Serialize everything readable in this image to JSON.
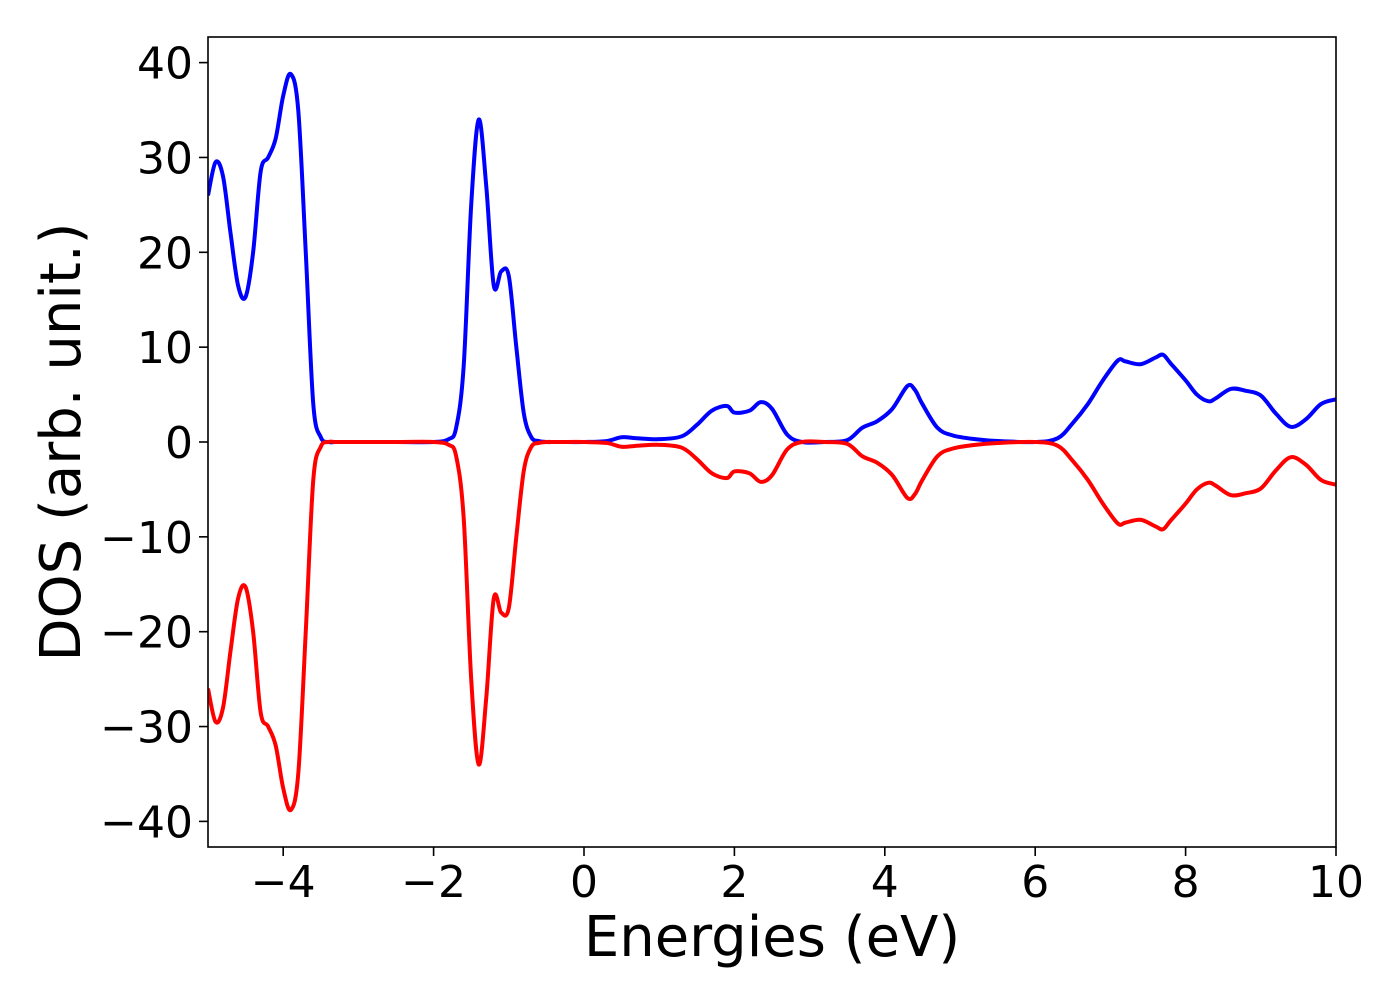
{
  "chart_data": {
    "type": "line",
    "title": "",
    "xlabel": "Energies (eV)",
    "ylabel": "DOS (arb. unit.)",
    "xlim": [
      -5,
      10
    ],
    "ylim": [
      -42.7,
      42.7
    ],
    "grid": false,
    "legend": "none",
    "xticks": [
      -4,
      -2,
      0,
      2,
      4,
      6,
      8,
      10
    ],
    "xtick_labels": [
      "−4",
      "−2",
      "0",
      "2",
      "4",
      "6",
      "8",
      "10"
    ],
    "yticks": [
      40,
      30,
      20,
      10,
      0,
      -10,
      -20,
      -30,
      -40
    ],
    "ytick_labels": [
      "40",
      "30",
      "20",
      "10",
      "0",
      "−10",
      "−20",
      "−30",
      "−40"
    ],
    "series": [
      {
        "color": "#0000ff",
        "x": [
          -5.0,
          -4.9,
          -4.8,
          -4.7,
          -4.6,
          -4.5,
          -4.4,
          -4.3,
          -4.2,
          -4.1,
          -4.0,
          -3.9,
          -3.8,
          -3.7,
          -3.6,
          -3.5,
          -3.4,
          -3.3,
          -3.2,
          -3.1,
          -3.0,
          -2.5,
          -2.0,
          -1.8,
          -1.7,
          -1.6,
          -1.5,
          -1.4,
          -1.3,
          -1.2,
          -1.1,
          -1.0,
          -0.9,
          -0.8,
          -0.7,
          -0.6,
          -0.5,
          -0.4,
          -0.3,
          0.0,
          0.3,
          0.5,
          0.7,
          1.0,
          1.3,
          1.5,
          1.7,
          1.9,
          2.0,
          2.2,
          2.35,
          2.5,
          2.7,
          2.9,
          3.2,
          3.5,
          3.7,
          3.9,
          4.1,
          4.3,
          4.4,
          4.5,
          4.7,
          4.9,
          5.2,
          5.5,
          6.0,
          6.3,
          6.5,
          6.7,
          6.9,
          7.1,
          7.2,
          7.4,
          7.6,
          7.7,
          7.8,
          8.0,
          8.15,
          8.3,
          8.4,
          8.6,
          8.8,
          9.0,
          9.2,
          9.4,
          9.6,
          9.8,
          10.0
        ],
        "y": [
          26,
          29.5,
          28,
          22,
          16.5,
          15.3,
          20,
          28.5,
          30,
          32,
          36.5,
          38.8,
          35,
          20,
          4,
          0.5,
          0,
          0,
          0,
          0,
          0,
          0,
          0,
          0.3,
          1.5,
          8,
          25,
          34,
          27,
          16.5,
          18,
          17.5,
          10,
          3,
          0.5,
          0.1,
          0,
          0,
          0,
          0,
          0.1,
          0.5,
          0.4,
          0.3,
          0.6,
          1.8,
          3.3,
          3.8,
          3.1,
          3.3,
          4.2,
          3.5,
          0.8,
          0,
          0,
          0.2,
          1.5,
          2.2,
          3.5,
          5.9,
          5.5,
          4.0,
          1.5,
          0.7,
          0.3,
          0.1,
          0,
          0.4,
          2.0,
          4.0,
          6.5,
          8.6,
          8.5,
          8.2,
          8.9,
          9.2,
          8.3,
          6.5,
          5.0,
          4.3,
          4.6,
          5.6,
          5.4,
          4.9,
          3.0,
          1.6,
          2.4,
          4.0,
          4.5
        ]
      },
      {
        "color": "#ff0000",
        "x": [
          -5.0,
          -4.9,
          -4.8,
          -4.7,
          -4.6,
          -4.5,
          -4.4,
          -4.3,
          -4.2,
          -4.1,
          -4.0,
          -3.9,
          -3.8,
          -3.7,
          -3.6,
          -3.5,
          -3.4,
          -3.3,
          -3.2,
          -3.1,
          -3.0,
          -2.5,
          -2.0,
          -1.8,
          -1.7,
          -1.6,
          -1.5,
          -1.4,
          -1.3,
          -1.2,
          -1.1,
          -1.0,
          -0.9,
          -0.8,
          -0.7,
          -0.6,
          -0.5,
          -0.4,
          -0.3,
          0.0,
          0.3,
          0.5,
          0.7,
          1.0,
          1.3,
          1.5,
          1.7,
          1.9,
          2.0,
          2.2,
          2.35,
          2.5,
          2.7,
          2.9,
          3.2,
          3.5,
          3.7,
          3.9,
          4.1,
          4.3,
          4.4,
          4.5,
          4.7,
          4.9,
          5.2,
          5.5,
          6.0,
          6.3,
          6.5,
          6.7,
          6.9,
          7.1,
          7.2,
          7.4,
          7.6,
          7.7,
          7.8,
          8.0,
          8.15,
          8.3,
          8.4,
          8.6,
          8.8,
          9.0,
          9.2,
          9.4,
          9.6,
          9.8,
          10.0
        ],
        "y": [
          -26,
          -29.5,
          -28,
          -22,
          -16.5,
          -15.3,
          -20,
          -28.5,
          -30,
          -32,
          -36.5,
          -38.8,
          -35,
          -20,
          -4,
          -0.5,
          0,
          0,
          0,
          0,
          0,
          0,
          0,
          -0.3,
          -1.5,
          -8,
          -25,
          -34,
          -27,
          -16.5,
          -18,
          -17.5,
          -10,
          -3,
          -0.5,
          -0.1,
          0,
          0,
          0,
          0,
          -0.1,
          -0.5,
          -0.4,
          -0.3,
          -0.6,
          -1.8,
          -3.3,
          -3.8,
          -3.1,
          -3.3,
          -4.2,
          -3.5,
          -0.8,
          0,
          0,
          -0.2,
          -1.5,
          -2.2,
          -3.5,
          -5.9,
          -5.5,
          -4.0,
          -1.5,
          -0.7,
          -0.3,
          -0.1,
          0,
          -0.4,
          -2.0,
          -4.0,
          -6.5,
          -8.6,
          -8.5,
          -8.2,
          -8.9,
          -9.2,
          -8.3,
          -6.5,
          -5.0,
          -4.3,
          -4.6,
          -5.6,
          -5.4,
          -4.9,
          -3.0,
          -1.6,
          -2.4,
          -4.0,
          -4.5
        ]
      }
    ]
  }
}
